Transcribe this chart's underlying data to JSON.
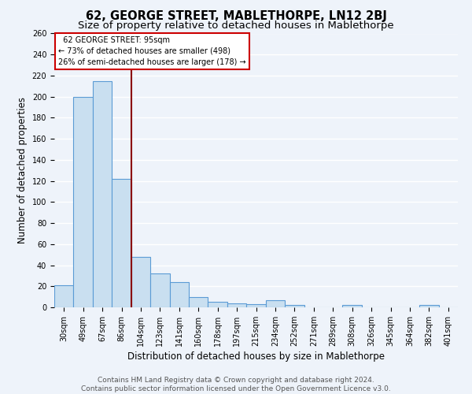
{
  "title": "62, GEORGE STREET, MABLETHORPE, LN12 2BJ",
  "subtitle": "Size of property relative to detached houses in Mablethorpe",
  "xlabel": "Distribution of detached houses by size in Mablethorpe",
  "ylabel": "Number of detached properties",
  "footer_line1": "Contains HM Land Registry data © Crown copyright and database right 2024.",
  "footer_line2": "Contains public sector information licensed under the Open Government Licence v3.0.",
  "categories": [
    "30sqm",
    "49sqm",
    "67sqm",
    "86sqm",
    "104sqm",
    "123sqm",
    "141sqm",
    "160sqm",
    "178sqm",
    "197sqm",
    "215sqm",
    "234sqm",
    "252sqm",
    "271sqm",
    "289sqm",
    "308sqm",
    "326sqm",
    "345sqm",
    "364sqm",
    "382sqm",
    "401sqm"
  ],
  "values": [
    21,
    200,
    215,
    122,
    48,
    32,
    24,
    10,
    5,
    4,
    3,
    7,
    2,
    0,
    0,
    2,
    0,
    0,
    0,
    2,
    0
  ],
  "bar_color": "#c9dff0",
  "bar_edge_color": "#5b9bd5",
  "annotation_title": "62 GEORGE STREET: 95sqm",
  "annotation_line1": "← 73% of detached houses are smaller (498)",
  "annotation_line2": "26% of semi-detached houses are larger (178) →",
  "ylim": [
    0,
    260
  ],
  "yticks": [
    0,
    20,
    40,
    60,
    80,
    100,
    120,
    140,
    160,
    180,
    200,
    220,
    240,
    260
  ],
  "background_color": "#eef3fa",
  "grid_color": "#ffffff",
  "title_fontsize": 10.5,
  "subtitle_fontsize": 9.5,
  "axis_label_fontsize": 8.5,
  "tick_fontsize": 7,
  "footer_fontsize": 6.5,
  "line_color": "#8b0000",
  "annotation_edge_color": "#cc0000",
  "line_x_index": 3.5
}
